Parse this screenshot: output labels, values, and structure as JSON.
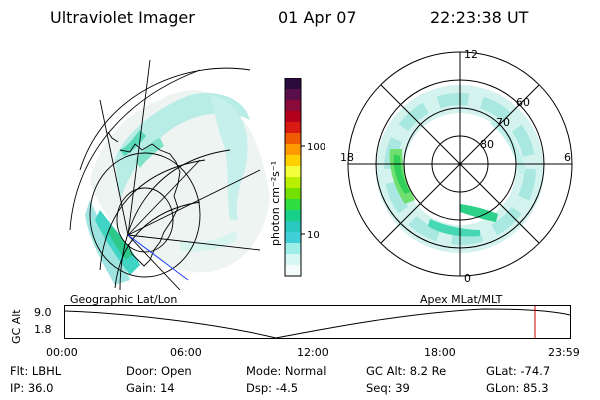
{
  "header": {
    "title": "Ultraviolet Imager",
    "date": "01 Apr 07",
    "time": "22:23:38 UT"
  },
  "colorbar": {
    "label": "photon cm⁻²s⁻¹",
    "ticks": [
      "100",
      "10"
    ],
    "colors": [
      "#2b0a3d",
      "#5a0f4a",
      "#8a0a3a",
      "#b5001b",
      "#d81a10",
      "#f05a00",
      "#ff9a00",
      "#ffd000",
      "#f2ff3a",
      "#b8f000",
      "#74e000",
      "#2ede40",
      "#19d08a",
      "#2ac9c0",
      "#3fd0d8",
      "#9eeee8",
      "#d8f6f4",
      "#f4fbfb"
    ]
  },
  "left_map": {
    "label": "Geographic Lat/Lon"
  },
  "right_map": {
    "label": "Apex MLat/MLT",
    "mlt_labels": [
      "12",
      "18",
      "6",
      "0"
    ],
    "lat_labels": [
      "60",
      "70",
      "80"
    ]
  },
  "timeline": {
    "ylabel": "GC Alt",
    "y_ticks": [
      "9.0",
      "1.8"
    ],
    "x_ticks": [
      "00:00",
      "06:00",
      "12:00",
      "18:00",
      "23:59"
    ],
    "marker_color": "#d00000"
  },
  "status": {
    "flt": "Flt: LBHL",
    "ip": "IP: 36.0",
    "door": "Door: Open",
    "gain": "Gain: 14",
    "mode": "Mode: Normal",
    "dsp": "Dsp:    -4.5",
    "gc_alt": "GC Alt: 8.2 Re",
    "seq": "Seq: 39",
    "glat": "GLat:  -74.7",
    "glon": "GLon:  85.3"
  }
}
